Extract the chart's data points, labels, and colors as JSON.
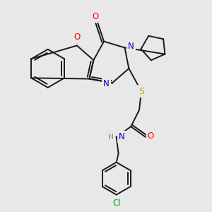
{
  "bg_color": "#e8e8e8",
  "bond_color": "#1a1a1a",
  "bond_width": 1.4,
  "atom_colors": {
    "O": "#ff0000",
    "N": "#0000cc",
    "S": "#ccaa00",
    "Cl": "#00aa00",
    "H": "#777777"
  },
  "figsize": [
    3.0,
    3.0
  ],
  "dpi": 100,
  "xlim": [
    0,
    10
  ],
  "ylim": [
    0,
    10
  ]
}
